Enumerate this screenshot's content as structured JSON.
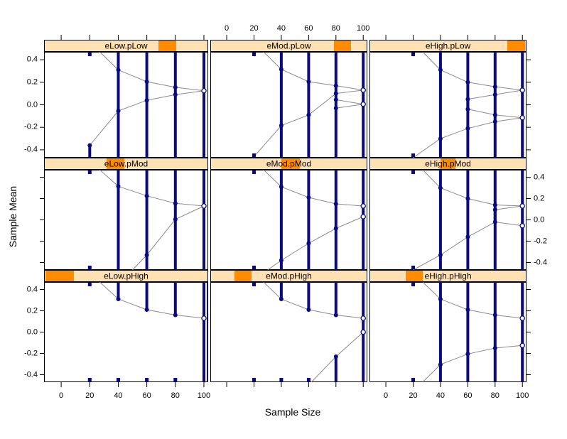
{
  "colors": {
    "background": "#ffffff",
    "strip_bg": "#ffe1b3",
    "strip_highlight": "#ff8c00",
    "bar": "#0a0a80",
    "line": "#8a8a8a",
    "border": "#000000",
    "text": "#000000"
  },
  "chart_data": {
    "type": "lattice-interval-plot",
    "title": "",
    "xlabel": "Sample Size",
    "ylabel": "Sample Mean",
    "x_ticks": [
      0,
      20,
      40,
      60,
      80,
      100
    ],
    "y_ticks": [
      {
        "value": 0.4,
        "label": "0.4"
      },
      {
        "value": 0.2,
        "label": "0.2"
      },
      {
        "value": 0.0,
        "label": "0.0"
      },
      {
        "value": -0.2,
        "label": "-0.2"
      },
      {
        "value": -0.4,
        "label": "-0.4"
      }
    ],
    "xlim": [
      -12,
      103
    ],
    "ylim": [
      -0.47,
      0.47
    ],
    "legend": "none",
    "grid": false,
    "panels": [
      {
        "id": "eLow.pLow",
        "row": 0,
        "col": 0,
        "strip_label": "eLow.pLow",
        "highlight": [
          0.7,
          0.81
        ],
        "bars": [
          [
            20,
            -0.36,
            -0.47
          ],
          [
            40,
            0.47,
            -0.47
          ],
          [
            60,
            0.47,
            -0.47
          ],
          [
            80,
            0.47,
            -0.47
          ],
          [
            100,
            0.47,
            -0.47
          ]
        ],
        "lines": [
          [
            [
              27,
              0.47
            ],
            [
              40,
              0.31
            ],
            [
              60,
              0.205
            ],
            [
              80,
              0.155
            ],
            [
              100,
              0.125
            ]
          ],
          [
            [
              20,
              -0.36
            ],
            [
              40,
              -0.055
            ],
            [
              60,
              0.04
            ],
            [
              80,
              0.09
            ],
            [
              100,
              0.125
            ]
          ]
        ],
        "open_points": [
          [
            100,
            0.125
          ]
        ],
        "squares_top": [
          20
        ],
        "squares_bottom": []
      },
      {
        "id": "eMod.pLow",
        "row": 0,
        "col": 1,
        "strip_label": "eMod.pLow",
        "highlight": [
          0.79,
          0.9
        ],
        "bars": [
          [
            40,
            0.47,
            -0.47
          ],
          [
            60,
            0.47,
            -0.47
          ],
          [
            80,
            0.47,
            -0.47
          ],
          [
            100,
            0.47,
            -0.47
          ]
        ],
        "lines": [
          [
            [
              27,
              0.47
            ],
            [
              40,
              0.315
            ],
            [
              60,
              0.205
            ],
            [
              80,
              0.17
            ],
            [
              100,
              0.13
            ]
          ],
          [
            [
              20,
              -0.46
            ],
            [
              40,
              -0.185
            ],
            [
              60,
              -0.09
            ],
            [
              80,
              0.1
            ],
            [
              100,
              0.13
            ]
          ],
          [
            [
              80,
              0.045
            ],
            [
              100,
              0.005
            ]
          ],
          [
            [
              80,
              -0.03
            ],
            [
              100,
              0.005
            ]
          ]
        ],
        "open_points": [
          [
            100,
            0.13
          ],
          [
            100,
            0.005
          ]
        ],
        "squares_top": [
          20
        ],
        "squares_bottom": [
          20
        ]
      },
      {
        "id": "eHigh.pLow",
        "row": 0,
        "col": 2,
        "strip_label": "eHigh.pLow",
        "highlight": [
          0.88,
          0.995
        ],
        "bars": [
          [
            40,
            0.47,
            -0.47
          ],
          [
            60,
            0.47,
            -0.47
          ],
          [
            80,
            0.47,
            -0.47
          ],
          [
            100,
            0.47,
            -0.47
          ],
          [
            60,
            0.05,
            -0.04
          ]
        ],
        "lines": [
          [
            [
              27,
              0.47
            ],
            [
              40,
              0.31
            ],
            [
              60,
              0.2
            ],
            [
              80,
              0.16
            ],
            [
              100,
              0.13
            ]
          ],
          [
            [
              60,
              0.05
            ],
            [
              80,
              0.09
            ],
            [
              100,
              0.13
            ]
          ],
          [
            [
              60,
              -0.04
            ],
            [
              80,
              -0.09
            ],
            [
              100,
              -0.115
            ]
          ],
          [
            [
              20,
              -0.47
            ],
            [
              40,
              -0.3
            ],
            [
              60,
              -0.21
            ],
            [
              80,
              -0.15
            ],
            [
              100,
              -0.115
            ]
          ]
        ],
        "open_points": [
          [
            100,
            0.13
          ],
          [
            100,
            -0.115
          ]
        ],
        "squares_top": [
          20
        ],
        "squares_bottom": [
          20
        ]
      },
      {
        "id": "eLow.pMod",
        "row": 1,
        "col": 0,
        "strip_label": "eLow.pMod",
        "highlight": [
          0.38,
          0.49
        ],
        "bars": [
          [
            40,
            0.47,
            -0.47
          ],
          [
            60,
            0.47,
            -0.47
          ],
          [
            80,
            0.47,
            -0.47
          ],
          [
            100,
            0.47,
            -0.47
          ]
        ],
        "lines": [
          [
            [
              27,
              0.47
            ],
            [
              40,
              0.315
            ],
            [
              60,
              0.225
            ],
            [
              80,
              0.155
            ],
            [
              100,
              0.13
            ]
          ],
          [
            [
              50,
              -0.47
            ],
            [
              60,
              -0.33
            ],
            [
              80,
              0.005
            ],
            [
              100,
              0.13
            ]
          ]
        ],
        "open_points": [
          [
            100,
            0.13
          ]
        ],
        "squares_top": [
          20
        ],
        "squares_bottom": [
          20
        ]
      },
      {
        "id": "eMod.pMod",
        "row": 1,
        "col": 1,
        "strip_label": "eMod.pMod",
        "highlight": [
          0.45,
          0.57
        ],
        "bars": [
          [
            40,
            0.47,
            -0.47
          ],
          [
            60,
            0.47,
            -0.47
          ],
          [
            80,
            0.47,
            -0.47
          ],
          [
            100,
            0.47,
            -0.47
          ]
        ],
        "lines": [
          [
            [
              27,
              0.47
            ],
            [
              40,
              0.31
            ],
            [
              60,
              0.21
            ],
            [
              80,
              0.15
            ],
            [
              100,
              0.13
            ]
          ],
          [
            [
              30,
              -0.47
            ],
            [
              40,
              -0.38
            ],
            [
              60,
              -0.22
            ],
            [
              80,
              -0.08
            ],
            [
              100,
              0.03
            ]
          ]
        ],
        "open_points": [
          [
            100,
            0.13
          ],
          [
            100,
            0.03
          ]
        ],
        "squares_top": [
          20
        ],
        "squares_bottom": [
          20
        ]
      },
      {
        "id": "eHigh.pMod",
        "row": 1,
        "col": 2,
        "strip_label": "eHigh.pMod",
        "highlight": [
          0.45,
          0.55
        ],
        "bars": [
          [
            40,
            0.47,
            -0.47
          ],
          [
            60,
            0.47,
            -0.47
          ],
          [
            80,
            0.47,
            -0.47
          ],
          [
            100,
            0.47,
            -0.47
          ],
          [
            80,
            0.095,
            -0.02
          ]
        ],
        "lines": [
          [
            [
              27,
              0.47
            ],
            [
              40,
              0.3
            ],
            [
              60,
              0.2
            ],
            [
              80,
              0.14
            ],
            [
              100,
              0.13
            ]
          ],
          [
            [
              80,
              0.095
            ],
            [
              100,
              0.13
            ]
          ],
          [
            [
              20,
              -0.47
            ],
            [
              40,
              -0.33
            ],
            [
              60,
              -0.16
            ],
            [
              80,
              -0.02
            ],
            [
              100,
              -0.055
            ]
          ]
        ],
        "open_points": [
          [
            100,
            0.13
          ],
          [
            100,
            -0.055
          ]
        ],
        "squares_top": [
          20
        ],
        "squares_bottom": [
          20
        ]
      },
      {
        "id": "eLow.pHigh",
        "row": 2,
        "col": 0,
        "strip_label": "eLow.pHigh",
        "highlight": [
          0.005,
          0.18
        ],
        "bars": [
          [
            40,
            0.47,
            0.31
          ],
          [
            60,
            0.47,
            0.21
          ],
          [
            80,
            0.47,
            0.16
          ],
          [
            100,
            0.47,
            -0.47
          ],
          [
            103,
            0.47,
            -0.47
          ]
        ],
        "lines": [
          [
            [
              27,
              0.47
            ],
            [
              40,
              0.31
            ],
            [
              60,
              0.21
            ],
            [
              80,
              0.16
            ],
            [
              100,
              0.13
            ]
          ]
        ],
        "open_points": [
          [
            100,
            0.13
          ]
        ],
        "squares_top": [
          20
        ],
        "squares_bottom": [
          20,
          40,
          60,
          80
        ]
      },
      {
        "id": "eMod.pHigh",
        "row": 2,
        "col": 1,
        "strip_label": "eMod.pHigh",
        "highlight": [
          0.15,
          0.26
        ],
        "bars": [
          [
            40,
            0.47,
            0.31
          ],
          [
            60,
            0.47,
            0.21
          ],
          [
            80,
            0.47,
            0.16
          ],
          [
            80,
            -0.23,
            -0.47
          ],
          [
            100,
            0.47,
            -0.47
          ]
        ],
        "lines": [
          [
            [
              27,
              0.47
            ],
            [
              40,
              0.31
            ],
            [
              60,
              0.21
            ],
            [
              80,
              0.16
            ],
            [
              100,
              0.13
            ]
          ],
          [
            [
              62,
              -0.47
            ],
            [
              80,
              -0.23
            ],
            [
              100,
              0.0
            ]
          ]
        ],
        "open_points": [
          [
            100,
            0.13
          ],
          [
            100,
            0.0
          ]
        ],
        "squares_top": [
          20
        ],
        "squares_bottom": [
          20,
          40,
          60
        ]
      },
      {
        "id": "eHigh.pHigh",
        "row": 2,
        "col": 2,
        "strip_label": "eHigh.pHigh",
        "highlight": [
          0.23,
          0.34
        ],
        "bars": [
          [
            40,
            0.47,
            -0.47
          ],
          [
            60,
            0.47,
            -0.47
          ],
          [
            80,
            0.47,
            -0.47
          ],
          [
            100,
            0.47,
            -0.47
          ]
        ],
        "lines": [
          [
            [
              27,
              0.47
            ],
            [
              40,
              0.31
            ],
            [
              60,
              0.21
            ],
            [
              80,
              0.16
            ],
            [
              100,
              0.13
            ]
          ],
          [
            [
              27,
              -0.47
            ],
            [
              40,
              -0.305
            ],
            [
              60,
              -0.205
            ],
            [
              80,
              -0.15
            ],
            [
              100,
              -0.125
            ]
          ]
        ],
        "open_points": [
          [
            100,
            0.13
          ],
          [
            100,
            -0.125
          ]
        ],
        "squares_top": [
          20
        ],
        "squares_bottom": [
          20
        ]
      }
    ]
  }
}
